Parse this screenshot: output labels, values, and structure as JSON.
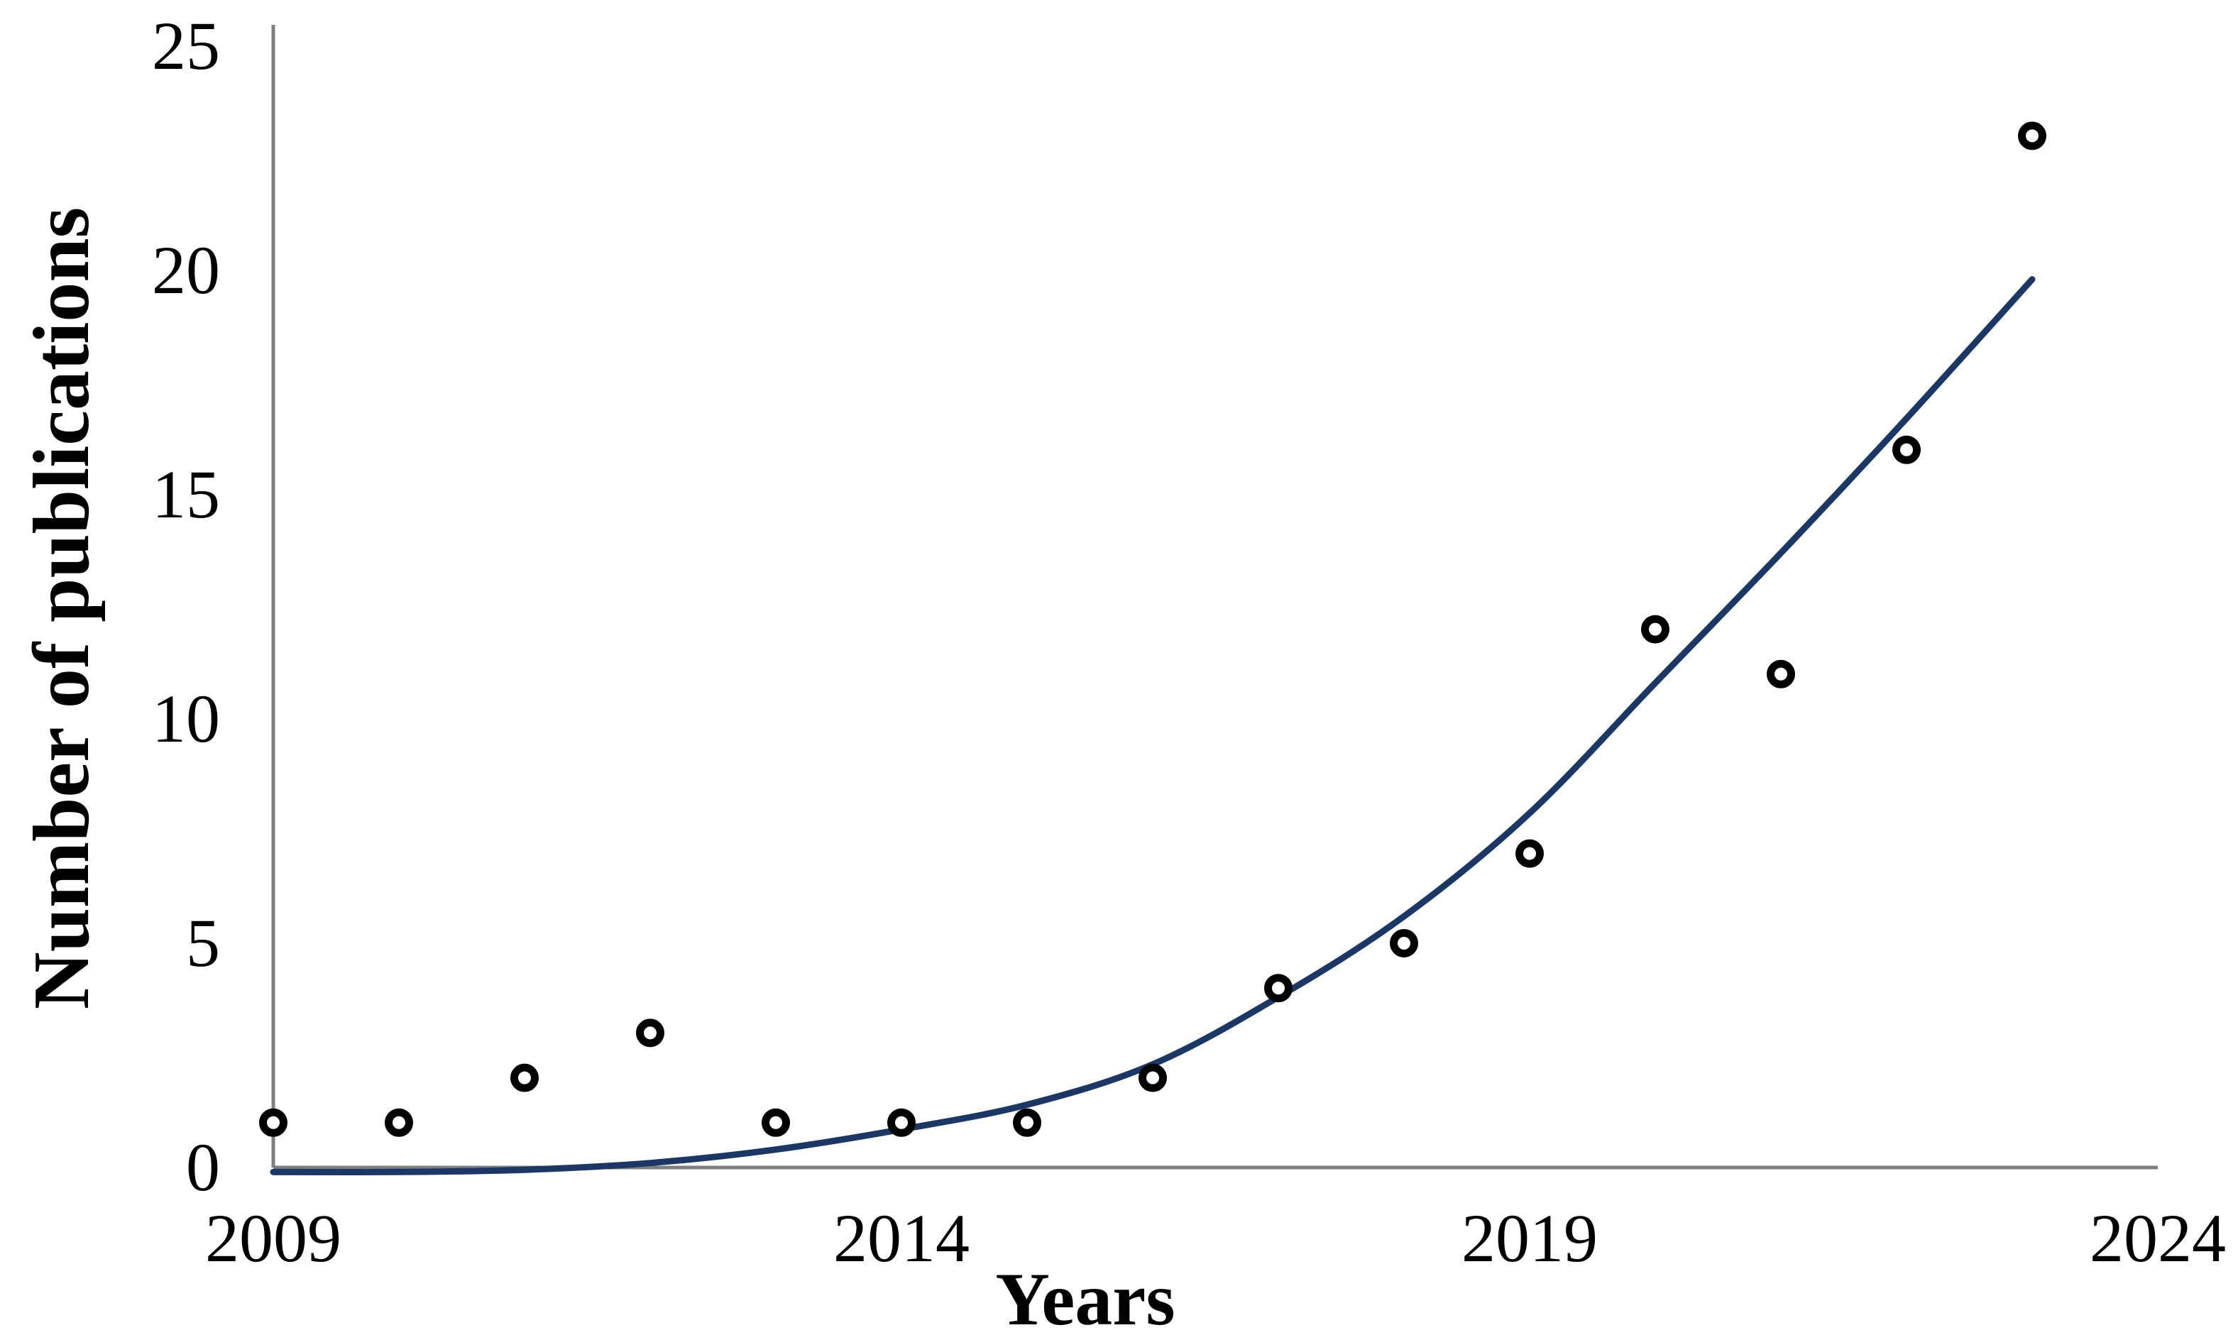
{
  "chart_data": {
    "type": "scatter",
    "title": "",
    "xlabel": "Years",
    "ylabel": "Number of publications",
    "x_ticks": [
      2009,
      2014,
      2019,
      2024
    ],
    "y_ticks": [
      0,
      5,
      10,
      15,
      20,
      25
    ],
    "xlim": [
      2009,
      2024
    ],
    "ylim": [
      0,
      25
    ],
    "grid": false,
    "legend": "none",
    "series": [
      {
        "name": "publications-per-year",
        "type": "scatter",
        "marker": "open-circle",
        "points": [
          {
            "year": 2009,
            "count": 1
          },
          {
            "year": 2010,
            "count": 1
          },
          {
            "year": 2011,
            "count": 2
          },
          {
            "year": 2012,
            "count": 3
          },
          {
            "year": 2013,
            "count": 1
          },
          {
            "year": 2014,
            "count": 1
          },
          {
            "year": 2015,
            "count": 1
          },
          {
            "year": 2016,
            "count": 2
          },
          {
            "year": 2017,
            "count": 4
          },
          {
            "year": 2018,
            "count": 5
          },
          {
            "year": 2019,
            "count": 7
          },
          {
            "year": 2020,
            "count": 12
          },
          {
            "year": 2021,
            "count": 11
          },
          {
            "year": 2022,
            "count": 16
          },
          {
            "year": 2023,
            "count": 23
          }
        ]
      },
      {
        "name": "trend-line",
        "type": "line",
        "samples": [
          [
            2009,
            -0.1
          ],
          [
            2010,
            -0.1
          ],
          [
            2011,
            -0.05
          ],
          [
            2012,
            0.1
          ],
          [
            2013,
            0.4
          ],
          [
            2014,
            0.85
          ],
          [
            2015,
            1.4
          ],
          [
            2016,
            2.3
          ],
          [
            2017,
            3.8
          ],
          [
            2018,
            5.6
          ],
          [
            2019,
            7.9
          ],
          [
            2020,
            10.8
          ],
          [
            2021,
            13.7
          ],
          [
            2022,
            16.7
          ],
          [
            2023,
            19.8
          ]
        ]
      }
    ],
    "colors": {
      "trendline": "#1a3766",
      "axis_line": "#7f7f7f",
      "marker_stroke": "#000000",
      "marker_fill": "#ffffff",
      "text": "#000000",
      "background": "#ffffff"
    }
  }
}
